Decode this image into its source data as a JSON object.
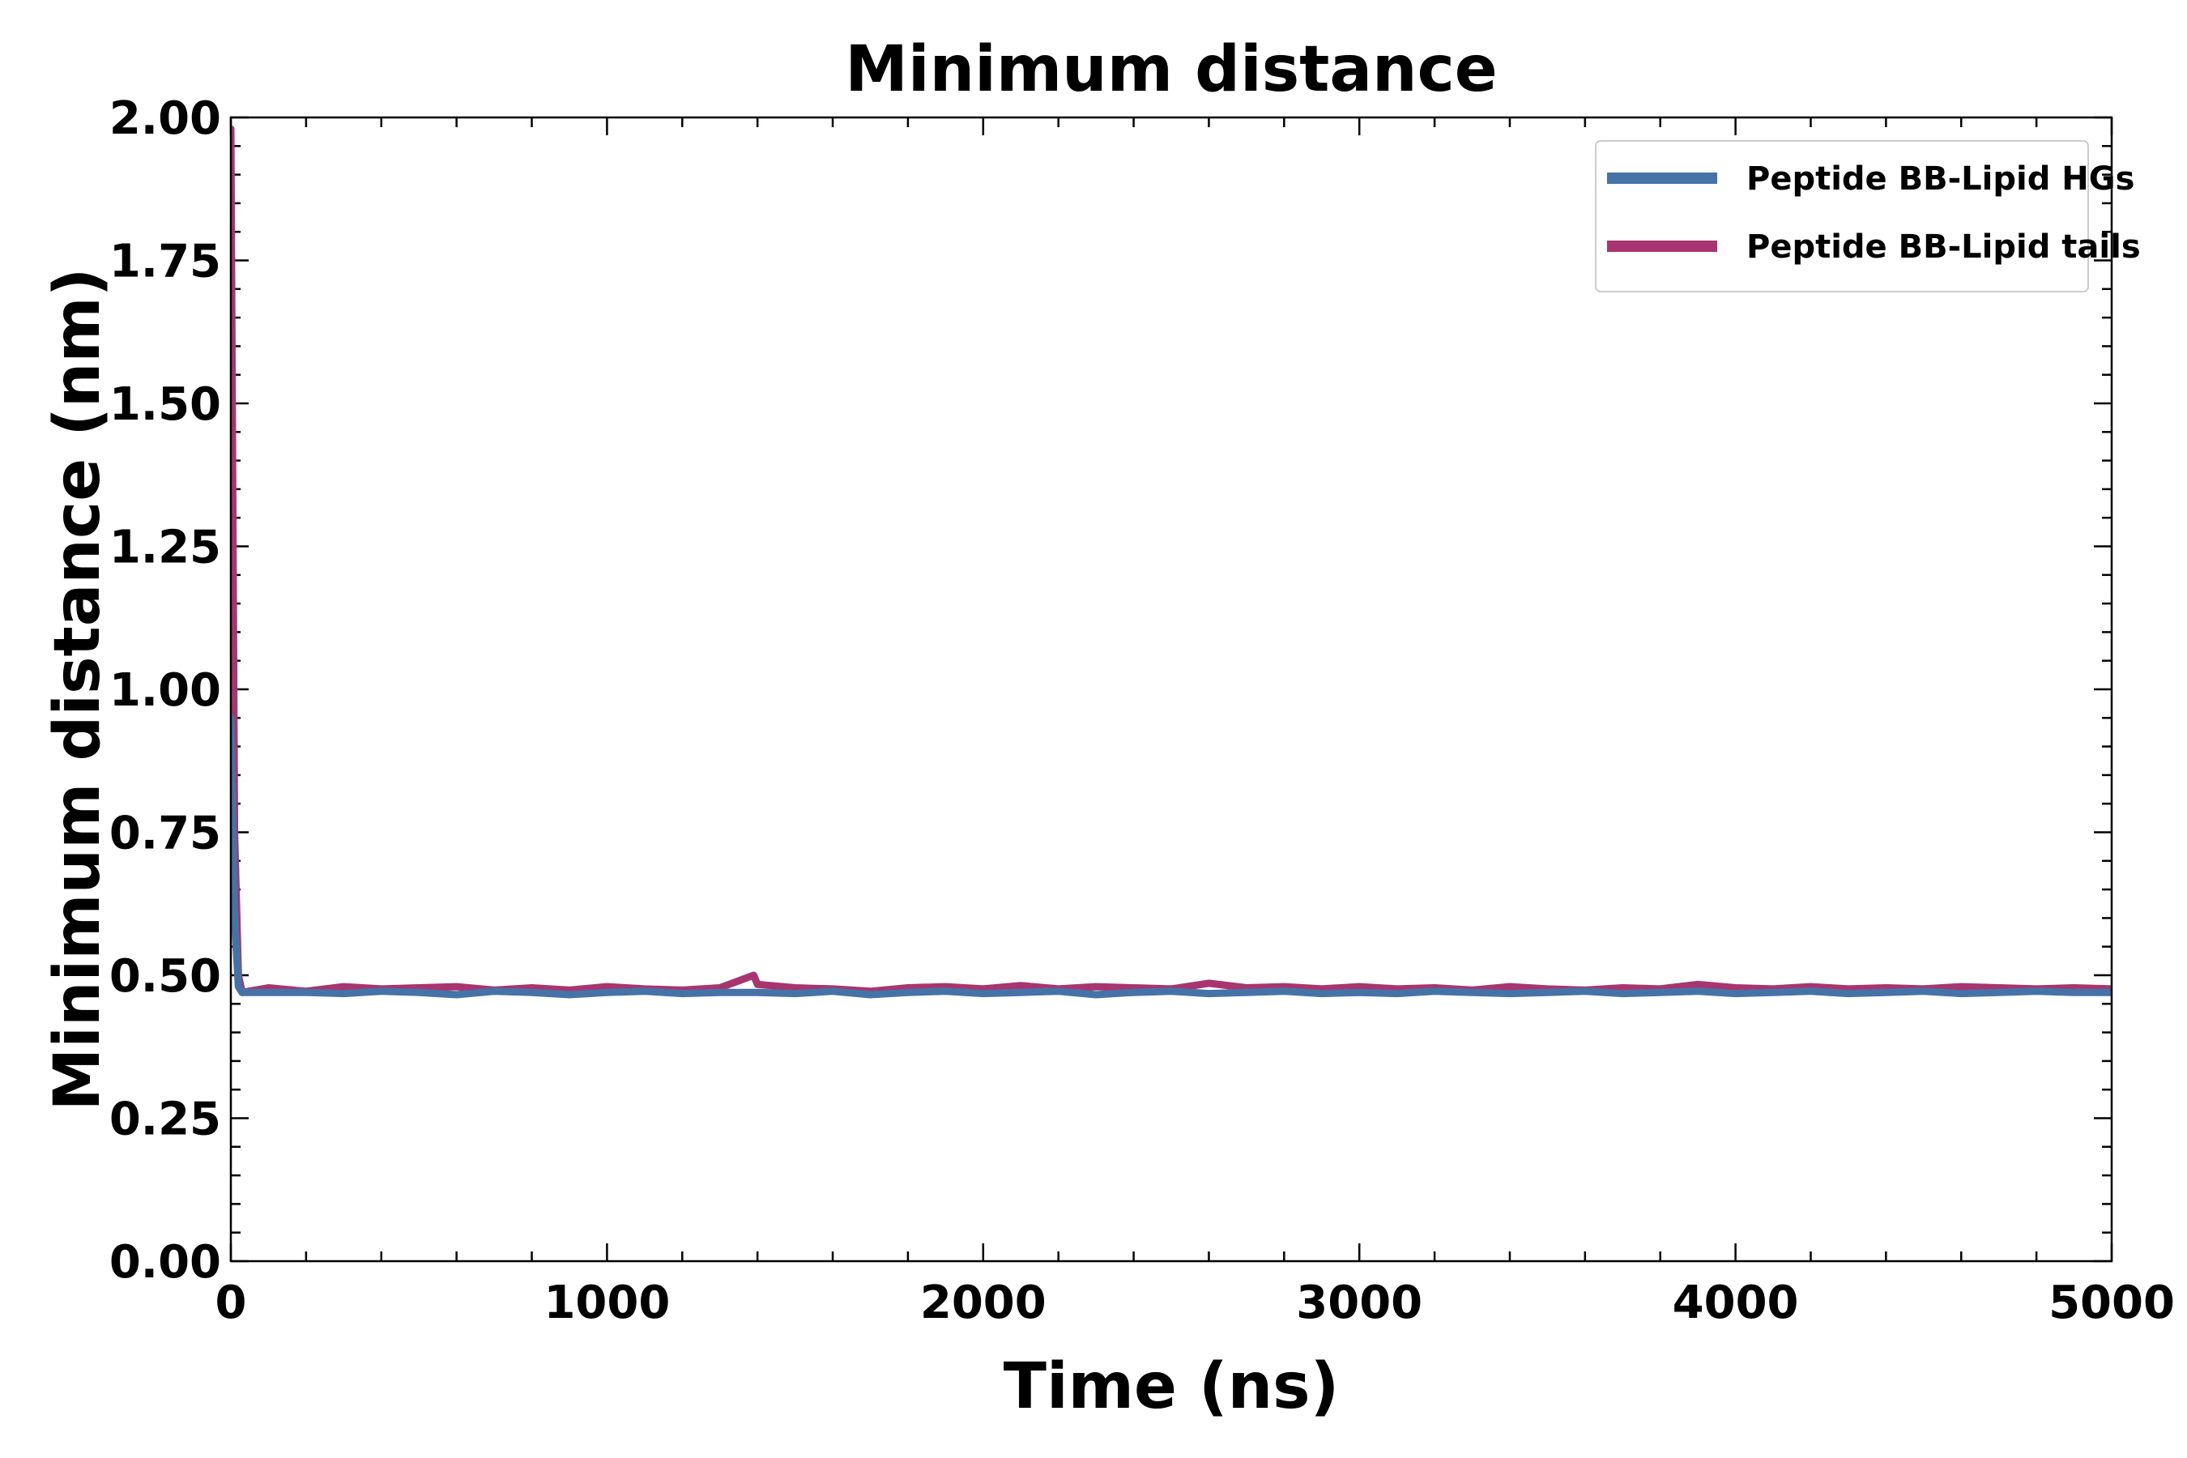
{
  "chart_data": {
    "type": "line",
    "title": "Minimum distance",
    "xlabel": "Time (ns)",
    "ylabel": "Minimum distance (nm)",
    "xlim": [
      0,
      5000
    ],
    "ylim": [
      0,
      2.0
    ],
    "x_ticks": [
      0,
      1000,
      2000,
      3000,
      4000,
      5000
    ],
    "y_ticks": [
      0.0,
      0.25,
      0.5,
      0.75,
      1.0,
      1.25,
      1.5,
      1.75,
      2.0
    ],
    "x_tick_labels": [
      "0",
      "1000",
      "2000",
      "3000",
      "4000",
      "5000"
    ],
    "y_tick_labels": [
      "0.00",
      "0.25",
      "0.50",
      "0.75",
      "1.00",
      "1.25",
      "1.50",
      "1.75",
      "2.00"
    ],
    "legend_position": "top-right",
    "grid": false,
    "series": [
      {
        "name": "Peptide BB-Lipid HGs",
        "color": "#4572a7",
        "x": [
          0,
          10,
          20,
          30,
          100,
          200,
          300,
          400,
          500,
          600,
          700,
          800,
          900,
          1000,
          1100,
          1200,
          1300,
          1400,
          1500,
          1600,
          1700,
          1800,
          1900,
          2000,
          2100,
          2200,
          2300,
          2400,
          2500,
          2600,
          2700,
          2800,
          2900,
          3000,
          3100,
          3200,
          3300,
          3400,
          3500,
          3600,
          3700,
          3800,
          3900,
          4000,
          4100,
          4200,
          4300,
          4400,
          4500,
          4600,
          4700,
          4800,
          4900,
          5000
        ],
        "values": [
          0.95,
          0.6,
          0.48,
          0.47,
          0.47,
          0.47,
          0.468,
          0.472,
          0.47,
          0.466,
          0.472,
          0.47,
          0.466,
          0.47,
          0.472,
          0.468,
          0.47,
          0.47,
          0.468,
          0.472,
          0.466,
          0.47,
          0.472,
          0.468,
          0.47,
          0.472,
          0.466,
          0.47,
          0.472,
          0.468,
          0.47,
          0.472,
          0.468,
          0.47,
          0.468,
          0.472,
          0.47,
          0.468,
          0.47,
          0.472,
          0.468,
          0.47,
          0.472,
          0.468,
          0.47,
          0.472,
          0.468,
          0.47,
          0.472,
          0.468,
          0.47,
          0.472,
          0.47,
          0.47
        ]
      },
      {
        "name": "Peptide BB-Lipid tails",
        "color": "#a8356f",
        "x": [
          0,
          10,
          20,
          30,
          100,
          200,
          300,
          400,
          500,
          600,
          700,
          800,
          900,
          1000,
          1100,
          1200,
          1300,
          1390,
          1400,
          1500,
          1600,
          1700,
          1800,
          1900,
          2000,
          2100,
          2200,
          2300,
          2400,
          2500,
          2600,
          2700,
          2800,
          2900,
          3000,
          3100,
          3200,
          3300,
          3400,
          3500,
          3600,
          3700,
          3800,
          3900,
          4000,
          4100,
          4200,
          4300,
          4400,
          4500,
          4600,
          4700,
          4800,
          4900,
          5000
        ],
        "values": [
          1.98,
          0.75,
          0.5,
          0.47,
          0.478,
          0.472,
          0.48,
          0.476,
          0.478,
          0.48,
          0.474,
          0.478,
          0.474,
          0.48,
          0.476,
          0.474,
          0.478,
          0.5,
          0.484,
          0.478,
          0.476,
          0.472,
          0.478,
          0.48,
          0.476,
          0.482,
          0.476,
          0.48,
          0.478,
          0.476,
          0.486,
          0.478,
          0.48,
          0.476,
          0.48,
          0.476,
          0.478,
          0.474,
          0.48,
          0.476,
          0.474,
          0.478,
          0.476,
          0.484,
          0.478,
          0.476,
          0.48,
          0.476,
          0.478,
          0.476,
          0.48,
          0.478,
          0.476,
          0.478,
          0.476
        ]
      }
    ]
  }
}
